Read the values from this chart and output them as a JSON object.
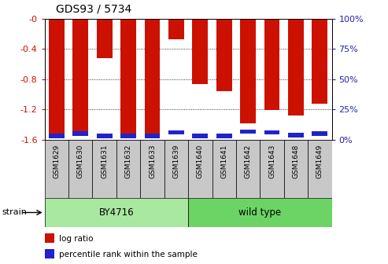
{
  "title": "GDS93 / 5734",
  "samples": [
    "GSM1629",
    "GSM1630",
    "GSM1631",
    "GSM1632",
    "GSM1633",
    "GSM1639",
    "GSM1640",
    "GSM1641",
    "GSM1642",
    "GSM1643",
    "GSM1648",
    "GSM1649"
  ],
  "log_ratios": [
    -1.58,
    -1.55,
    -0.52,
    -1.56,
    -1.58,
    -0.27,
    -0.86,
    -0.96,
    -1.38,
    -1.21,
    -1.28,
    -1.12
  ],
  "blue_bar_bottoms": [
    -1.58,
    -1.55,
    -1.58,
    -1.58,
    -1.58,
    -1.53,
    -1.58,
    -1.58,
    -1.52,
    -1.53,
    -1.57,
    -1.55
  ],
  "blue_bar_heights": [
    0.06,
    0.06,
    0.06,
    0.06,
    0.06,
    0.06,
    0.06,
    0.06,
    0.06,
    0.06,
    0.06,
    0.06
  ],
  "groups": [
    {
      "label": "BY4716",
      "start": 0,
      "end": 5,
      "color": "#a8e8a0"
    },
    {
      "label": "wild type",
      "start": 6,
      "end": 11,
      "color": "#6cd464"
    }
  ],
  "bar_color": "#cc1100",
  "percentile_color": "#2222cc",
  "ylim": [
    -1.6,
    0.0
  ],
  "yticks": [
    -1.6,
    -1.2,
    -0.8,
    -0.4,
    0.0
  ],
  "ytick_labels": [
    "-1.6",
    "-1.2",
    "-0.8",
    "-0.4",
    "-0"
  ],
  "y2ticks_pct": [
    0,
    25,
    50,
    75,
    100
  ],
  "grid_lines": [
    -0.4,
    -0.8,
    -1.2
  ],
  "legend_items": [
    {
      "label": "log ratio",
      "color": "#cc1100"
    },
    {
      "label": "percentile rank within the sample",
      "color": "#2222cc"
    }
  ]
}
